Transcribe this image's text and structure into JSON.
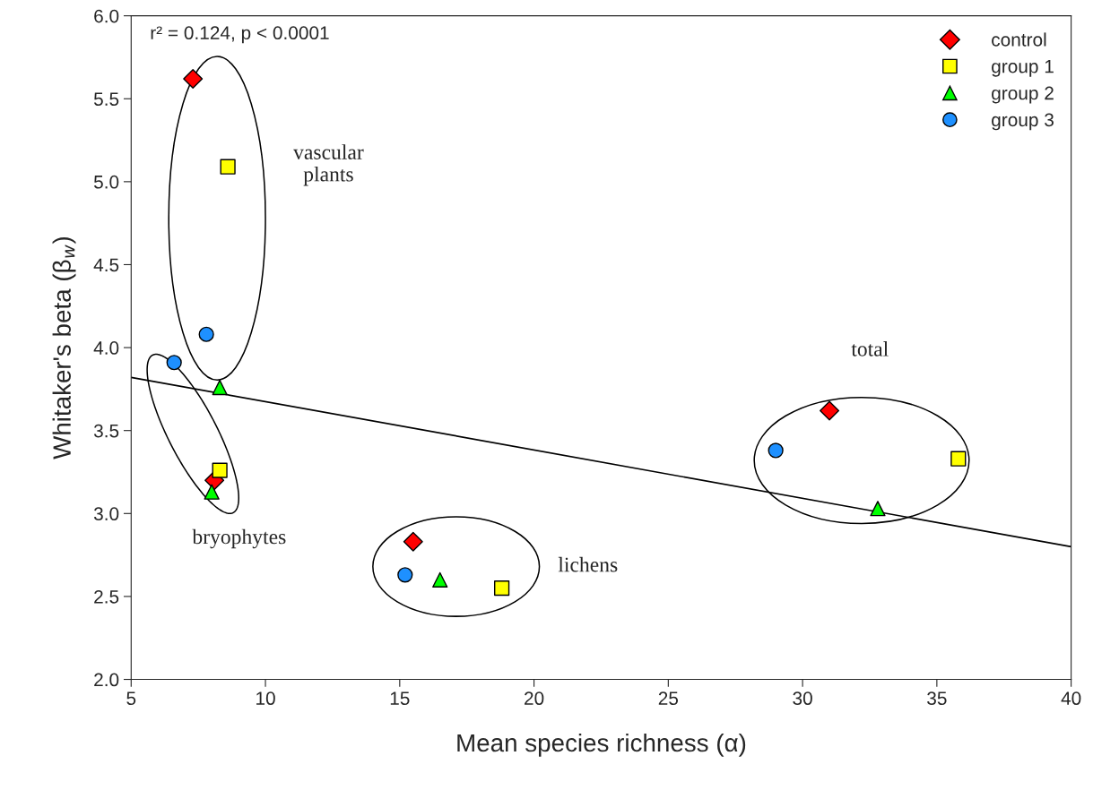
{
  "chart_data": {
    "type": "scatter",
    "xlabel": "Mean species richness (α)",
    "ylabel": "Whitaker's beta (β$_{w}$)",
    "xlim": [
      5,
      40
    ],
    "xticks": [
      5,
      10,
      15,
      20,
      25,
      30,
      35,
      40
    ],
    "ylim": [
      2.0,
      6.0
    ],
    "yticks": [
      {
        "value": 2.0,
        "label": "2.0"
      },
      {
        "value": 2.5,
        "label": "2.5"
      },
      {
        "value": 3.0,
        "label": "3.0"
      },
      {
        "value": 3.5,
        "label": "3.5"
      },
      {
        "value": 4.0,
        "label": "4.0"
      },
      {
        "value": 4.5,
        "label": "4.5"
      },
      {
        "value": 5.0,
        "label": "5.0"
      },
      {
        "value": 5.5,
        "label": "5.5"
      },
      {
        "value": 6.0,
        "label": "6.0"
      }
    ],
    "grid": false,
    "legend": "top right",
    "series": [
      {
        "name": "control",
        "color": "#ff0000",
        "marker": "diamond",
        "x": [
          7.3,
          8.1,
          15.5,
          31.0
        ],
        "values": [
          5.62,
          3.2,
          2.83,
          3.62
        ]
      },
      {
        "name": "group 1",
        "color": "#ffff00",
        "marker": "square",
        "x": [
          8.6,
          8.3,
          18.8,
          35.8
        ],
        "values": [
          5.09,
          3.26,
          2.55,
          3.33
        ]
      },
      {
        "name": "group 2",
        "color": "#00ff00",
        "marker": "triangle",
        "x": [
          8.3,
          8.0,
          16.5,
          32.8
        ],
        "values": [
          3.76,
          3.13,
          2.6,
          3.03
        ]
      },
      {
        "name": "group 3",
        "color": "#1e90ff",
        "marker": "circle",
        "x": [
          7.8,
          6.6,
          15.2,
          29.0
        ],
        "values": [
          4.08,
          3.91,
          2.63,
          3.38
        ]
      },
      {
        "type": "line",
        "color": "#000000",
        "marker": "none",
        "x": [
          5,
          40
        ],
        "values": [
          3.82,
          2.8
        ]
      }
    ],
    "annotations": [
      "r² = 0.124, p < 0.0001",
      "vascular\nplants",
      "bryophytes",
      "lichens",
      "total"
    ]
  }
}
